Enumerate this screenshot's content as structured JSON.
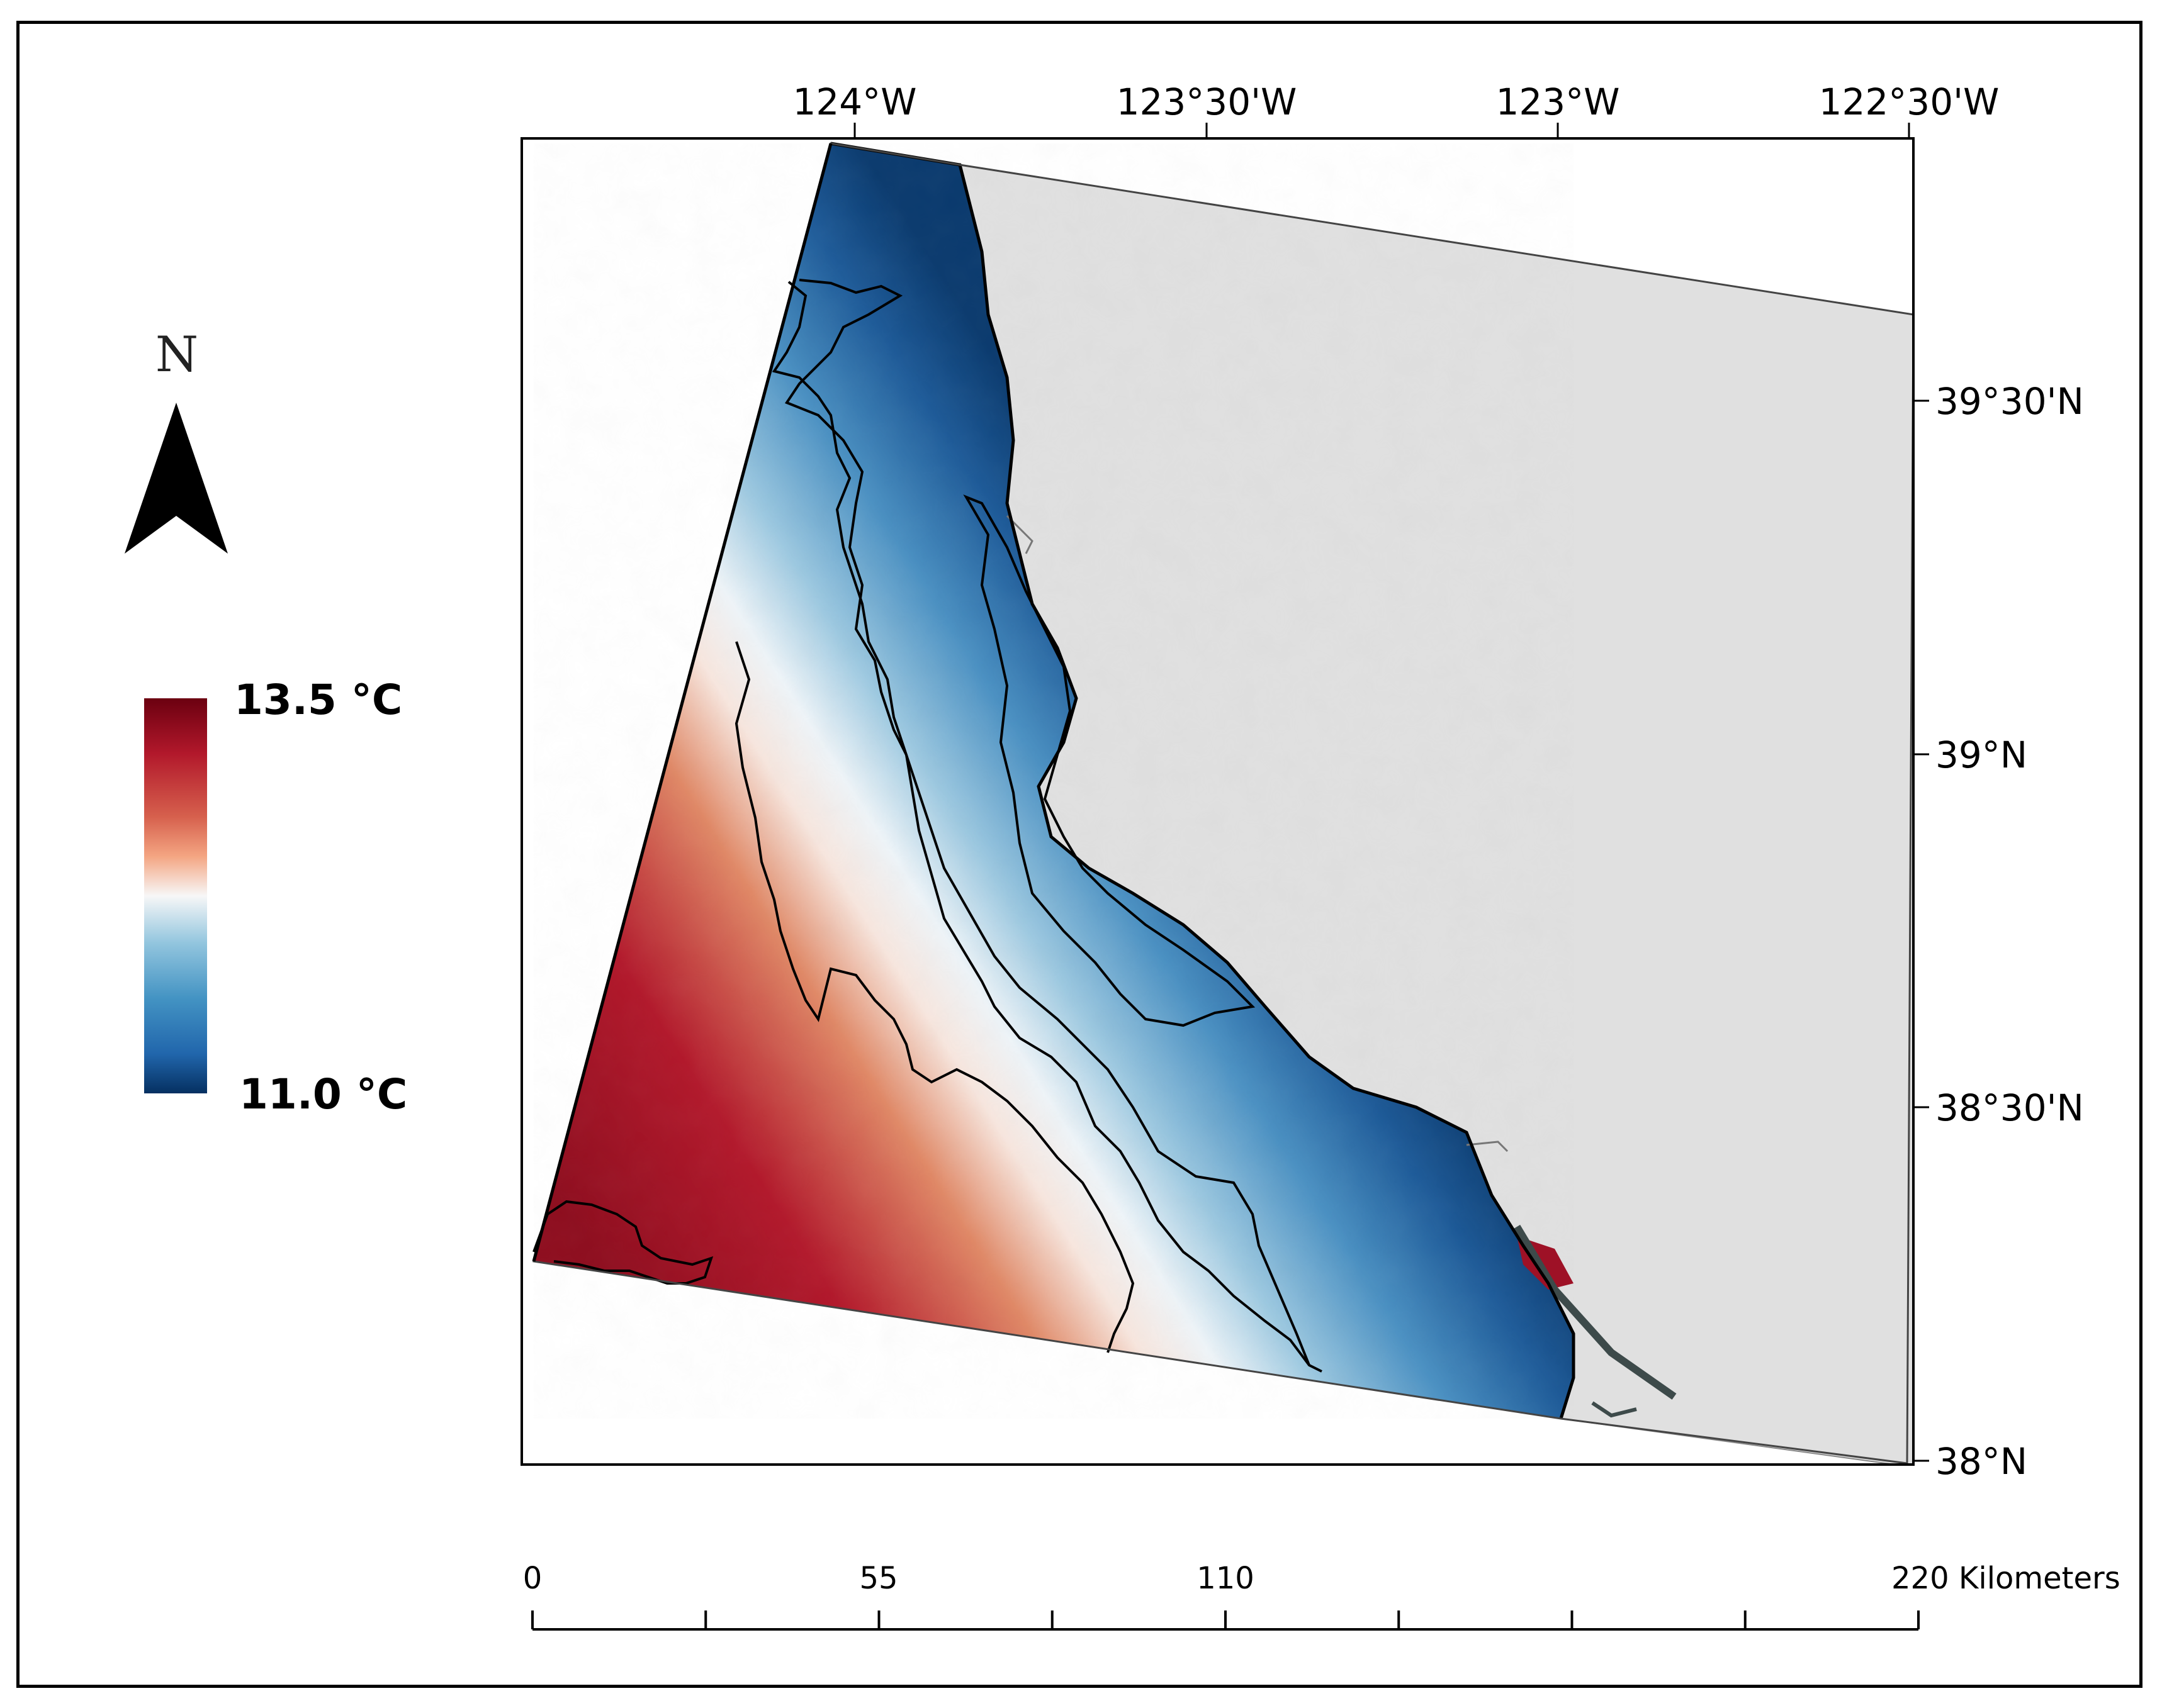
{
  "north_arrow": {
    "label": "N",
    "icon": "north-arrow-icon"
  },
  "legend": {
    "max_label": "13.5 °C",
    "min_label": "11.0 °C",
    "max_value_c": 13.5,
    "min_value_c": 11.0,
    "colors": [
      "#6b0010",
      "#b2182b",
      "#d6604d",
      "#f4a582",
      "#f7f7f7",
      "#92c5de",
      "#4393c3",
      "#2166ac",
      "#053061"
    ]
  },
  "longitude_ticks": [
    "124°W",
    "123°30'W",
    "123°W",
    "122°30'W"
  ],
  "latitude_ticks": [
    "39°30'N",
    "39°N",
    "38°30'N",
    "38°N"
  ],
  "scale_bar": {
    "labels": [
      "0",
      "55",
      "110",
      "220 Kilometers"
    ],
    "values_km": [
      0,
      55,
      110,
      220
    ],
    "divisions": 8
  },
  "map": {
    "land_color": "#e0e0e0",
    "ocean_warm": "#b2182b",
    "ocean_cold": "#053061"
  }
}
